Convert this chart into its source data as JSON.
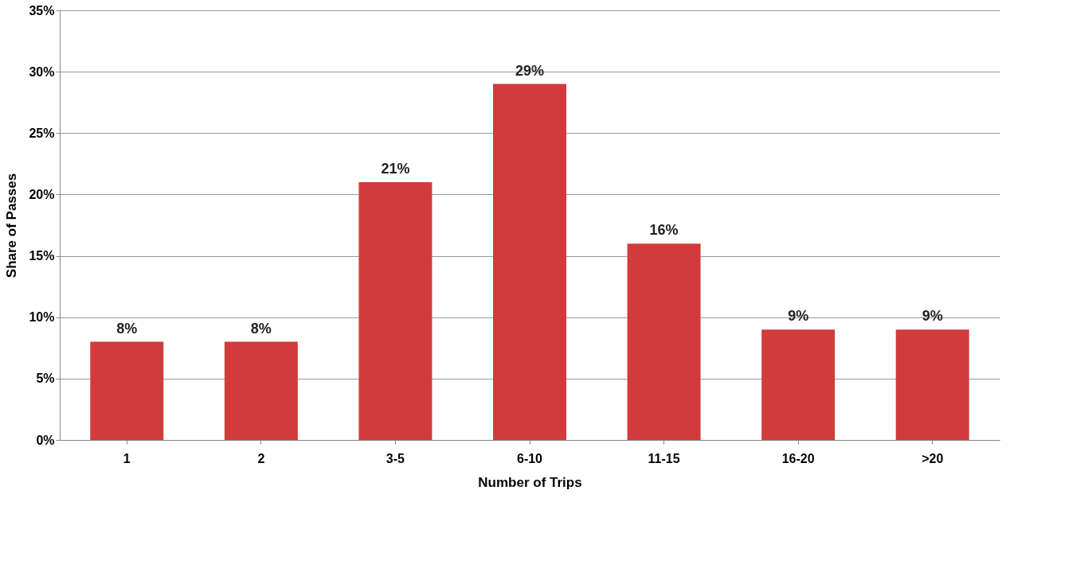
{
  "chart_data": {
    "type": "bar",
    "xlabel": "Number of Trips",
    "ylabel": "Share of Passes",
    "categories": [
      "1",
      "2",
      "3-5",
      "6-10",
      "11-15",
      "16-20",
      ">20"
    ],
    "values": [
      8,
      8,
      21,
      29,
      16,
      9,
      9
    ],
    "value_labels": [
      "8%",
      "8%",
      "21%",
      "29%",
      "16%",
      "9%",
      "9%"
    ],
    "color": "#d23b3b",
    "ylim": [
      0,
      35
    ],
    "yticks": [
      {
        "value": 0,
        "label": "0%"
      },
      {
        "value": 5,
        "label": "5%"
      },
      {
        "value": 10,
        "label": "10%"
      },
      {
        "value": 15,
        "label": "15%"
      },
      {
        "value": 20,
        "label": "20%"
      },
      {
        "value": 25,
        "label": "25%"
      },
      {
        "value": 30,
        "label": "30%"
      },
      {
        "value": 35,
        "label": "35%"
      }
    ],
    "grid": "y"
  }
}
